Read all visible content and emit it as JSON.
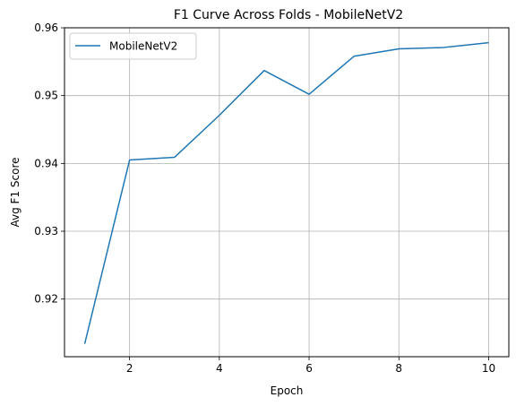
{
  "chart_data": {
    "type": "line",
    "title": "F1 Curve Across Folds - MobileNetV2",
    "xlabel": "Epoch",
    "ylabel": "Avg F1 Score",
    "xlim": [
      0.55,
      10.45
    ],
    "ylim": [
      0.9115,
      0.96
    ],
    "xticks": [
      2,
      4,
      6,
      8,
      10
    ],
    "xtick_labels": [
      "2",
      "4",
      "6",
      "8",
      "10"
    ],
    "yticks": [
      0.92,
      0.93,
      0.94,
      0.95,
      0.96
    ],
    "ytick_labels": [
      "0.92",
      "0.93",
      "0.94",
      "0.95",
      "0.96"
    ],
    "grid": true,
    "legend_position": "top-left",
    "series": [
      {
        "name": "MobileNetV2",
        "color": "#1f77b4",
        "x": [
          1,
          2,
          3,
          4,
          5,
          6,
          7,
          8,
          9,
          10
        ],
        "y": [
          0.9134,
          0.9405,
          0.9409,
          0.9471,
          0.9537,
          0.9502,
          0.9558,
          0.9569,
          0.9571,
          0.9578
        ]
      }
    ]
  }
}
